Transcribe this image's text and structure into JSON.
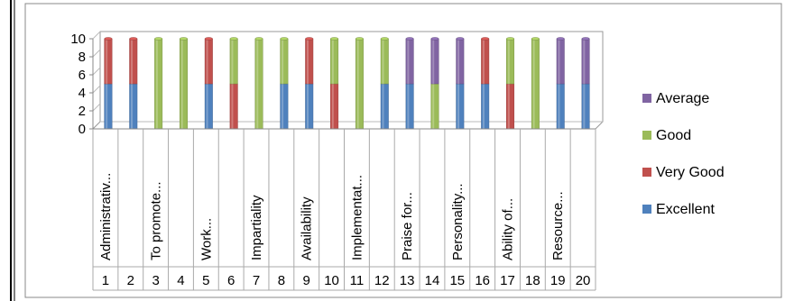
{
  "chart_data": {
    "type": "bar",
    "stacked": true,
    "ylim": [
      0,
      10
    ],
    "yticks": [
      0,
      2,
      4,
      6,
      8,
      10
    ],
    "categories": [
      "1",
      "2",
      "3",
      "4",
      "5",
      "6",
      "7",
      "8",
      "9",
      "10",
      "11",
      "12",
      "13",
      "14",
      "15",
      "16",
      "17",
      "18",
      "19",
      "20"
    ],
    "category_labels": [
      "Administrativ...",
      "",
      "To promote...",
      "",
      "Work...",
      "",
      "Impartiality",
      "",
      "Availability",
      "",
      "Implementat...",
      "",
      "Praise for...",
      "",
      "Personality...",
      "",
      "Ability of...",
      "",
      "Resource...",
      ""
    ],
    "series": [
      {
        "name": "Excellent",
        "color": "#4f81bd",
        "values": [
          5,
          5,
          0,
          0,
          5,
          0,
          0,
          5,
          5,
          0,
          0,
          5,
          5,
          0,
          5,
          5,
          0,
          0,
          5,
          5
        ]
      },
      {
        "name": "Very Good",
        "color": "#c0504d",
        "values": [
          5,
          5,
          0,
          0,
          5,
          5,
          0,
          0,
          5,
          5,
          0,
          0,
          0,
          0,
          0,
          5,
          5,
          0,
          0,
          0
        ]
      },
      {
        "name": "Good",
        "color": "#9bbb59",
        "values": [
          0,
          0,
          10,
          10,
          0,
          5,
          10,
          5,
          0,
          5,
          10,
          5,
          0,
          5,
          0,
          0,
          5,
          10,
          0,
          0
        ]
      },
      {
        "name": "Average",
        "color": "#8064a2",
        "values": [
          0,
          0,
          0,
          0,
          0,
          0,
          0,
          0,
          0,
          0,
          0,
          0,
          5,
          5,
          5,
          0,
          0,
          0,
          5,
          5
        ]
      }
    ],
    "legend": {
      "position": "right",
      "order": [
        "Average",
        "Good",
        "Very Good",
        "Excellent"
      ]
    },
    "grid": false
  }
}
